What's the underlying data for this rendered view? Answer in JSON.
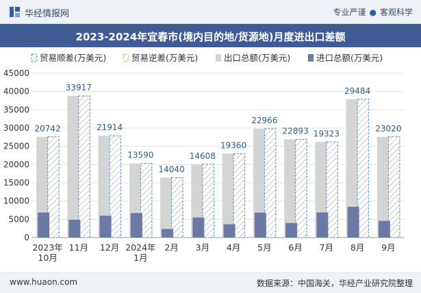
{
  "header": {
    "brand": "华经情报网",
    "tagline_left": "专业严谨",
    "tagline_right": "客观科学"
  },
  "footer": {
    "url": "www.huaon.com",
    "source": "数据来源：中国海关，华经产业研究院整理"
  },
  "colors": {
    "export": "#d4d4d4",
    "import": "#6a7aa4",
    "surplus_border": "#4a8fd0",
    "deficit_border": "#e8c04a",
    "label": "#2a5c8f",
    "titlebar": "#3f5b94"
  },
  "chart_data": {
    "type": "bar",
    "title": "2023-2024年宜春市(境内目的地/货源地)月度进出口差额",
    "legend": [
      "贸易顺差(万美元)",
      "贸易逆差(万美元)",
      "出口总额(万美元)",
      "进口总额(万美元)"
    ],
    "legend_position": "top-left",
    "categories": [
      [
        "2023年",
        "10月"
      ],
      [
        "11月"
      ],
      [
        "12月"
      ],
      [
        "2024年",
        "1月"
      ],
      [
        "2月"
      ],
      [
        "3月"
      ],
      [
        "4月"
      ],
      [
        "5月"
      ],
      [
        "6月"
      ],
      [
        "7月"
      ],
      [
        "8月"
      ],
      [
        "9月"
      ]
    ],
    "series": [
      {
        "name": "贸易顺差(万美元)",
        "values": [
          20742,
          33917,
          21914,
          13590,
          14040,
          14608,
          19360,
          22966,
          22893,
          19323,
          29484,
          23020
        ]
      },
      {
        "name": "贸易逆差(万美元)",
        "values": [
          0,
          0,
          0,
          0,
          0,
          0,
          0,
          0,
          0,
          0,
          0,
          0
        ]
      },
      {
        "name": "出口总额(万美元)",
        "values": [
          27600,
          38800,
          27900,
          20300,
          16400,
          20100,
          23000,
          29800,
          26900,
          26200,
          37900,
          27600
        ]
      },
      {
        "name": "进口总额(万美元)",
        "values": [
          6858,
          4883,
          5986,
          6710,
          2360,
          5492,
          3640,
          6834,
          4007,
          6877,
          8416,
          4580
        ]
      }
    ],
    "data_labels": [
      "20742",
      "33917",
      "21914",
      "13590",
      "14040",
      "14608",
      "19360",
      "22966",
      "22893",
      "19323",
      "29484",
      "23020"
    ],
    "yticks": [
      "0",
      "5000",
      "10000",
      "15000",
      "20000",
      "25000",
      "30000",
      "35000",
      "40000",
      "45000"
    ],
    "ylim": [
      0,
      45000
    ],
    "grid": true
  }
}
